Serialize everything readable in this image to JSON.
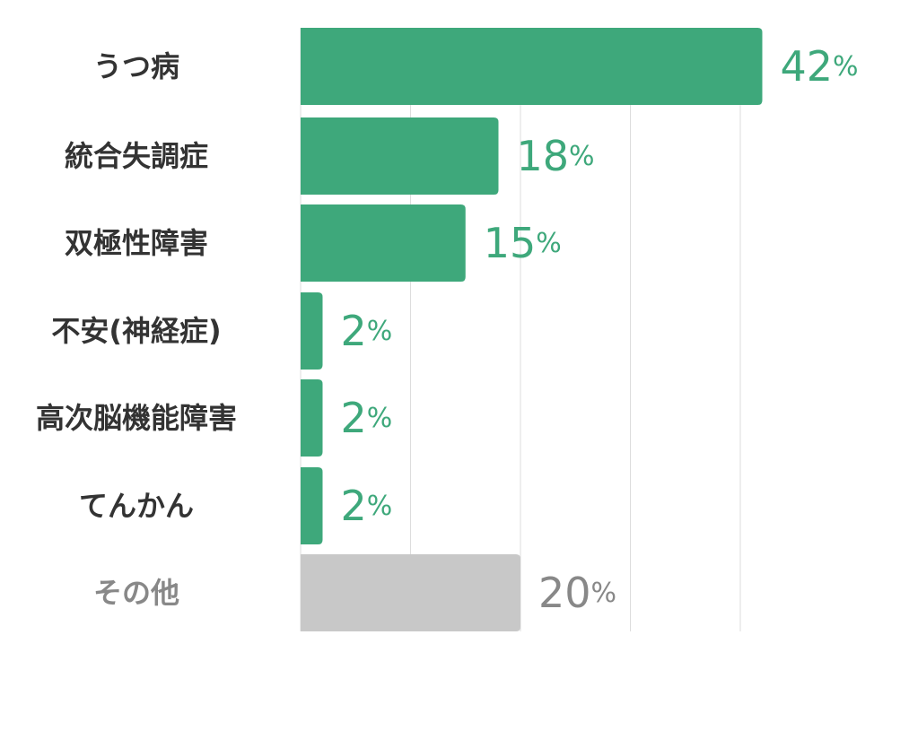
{
  "chart_data": {
    "type": "bar",
    "orientation": "horizontal",
    "categories": [
      "うつ病",
      "統合失調症",
      "双極性障害",
      "不安(神経症)",
      "高次脳機能障害",
      "てんかん",
      "その他"
    ],
    "values": [
      42,
      18,
      15,
      2,
      2,
      2,
      20
    ],
    "value_suffix": "%",
    "xlim": [
      0,
      50
    ],
    "grid": true,
    "title": "",
    "xlabel": "",
    "ylabel": "",
    "colors": {
      "primary": "#3ea87b",
      "other": "#c8c8c8",
      "primary_label": "#3ea87b",
      "other_label": "#888888",
      "category_label": "#333333",
      "other_category_label": "#888888",
      "grid": "#dddddd"
    }
  }
}
